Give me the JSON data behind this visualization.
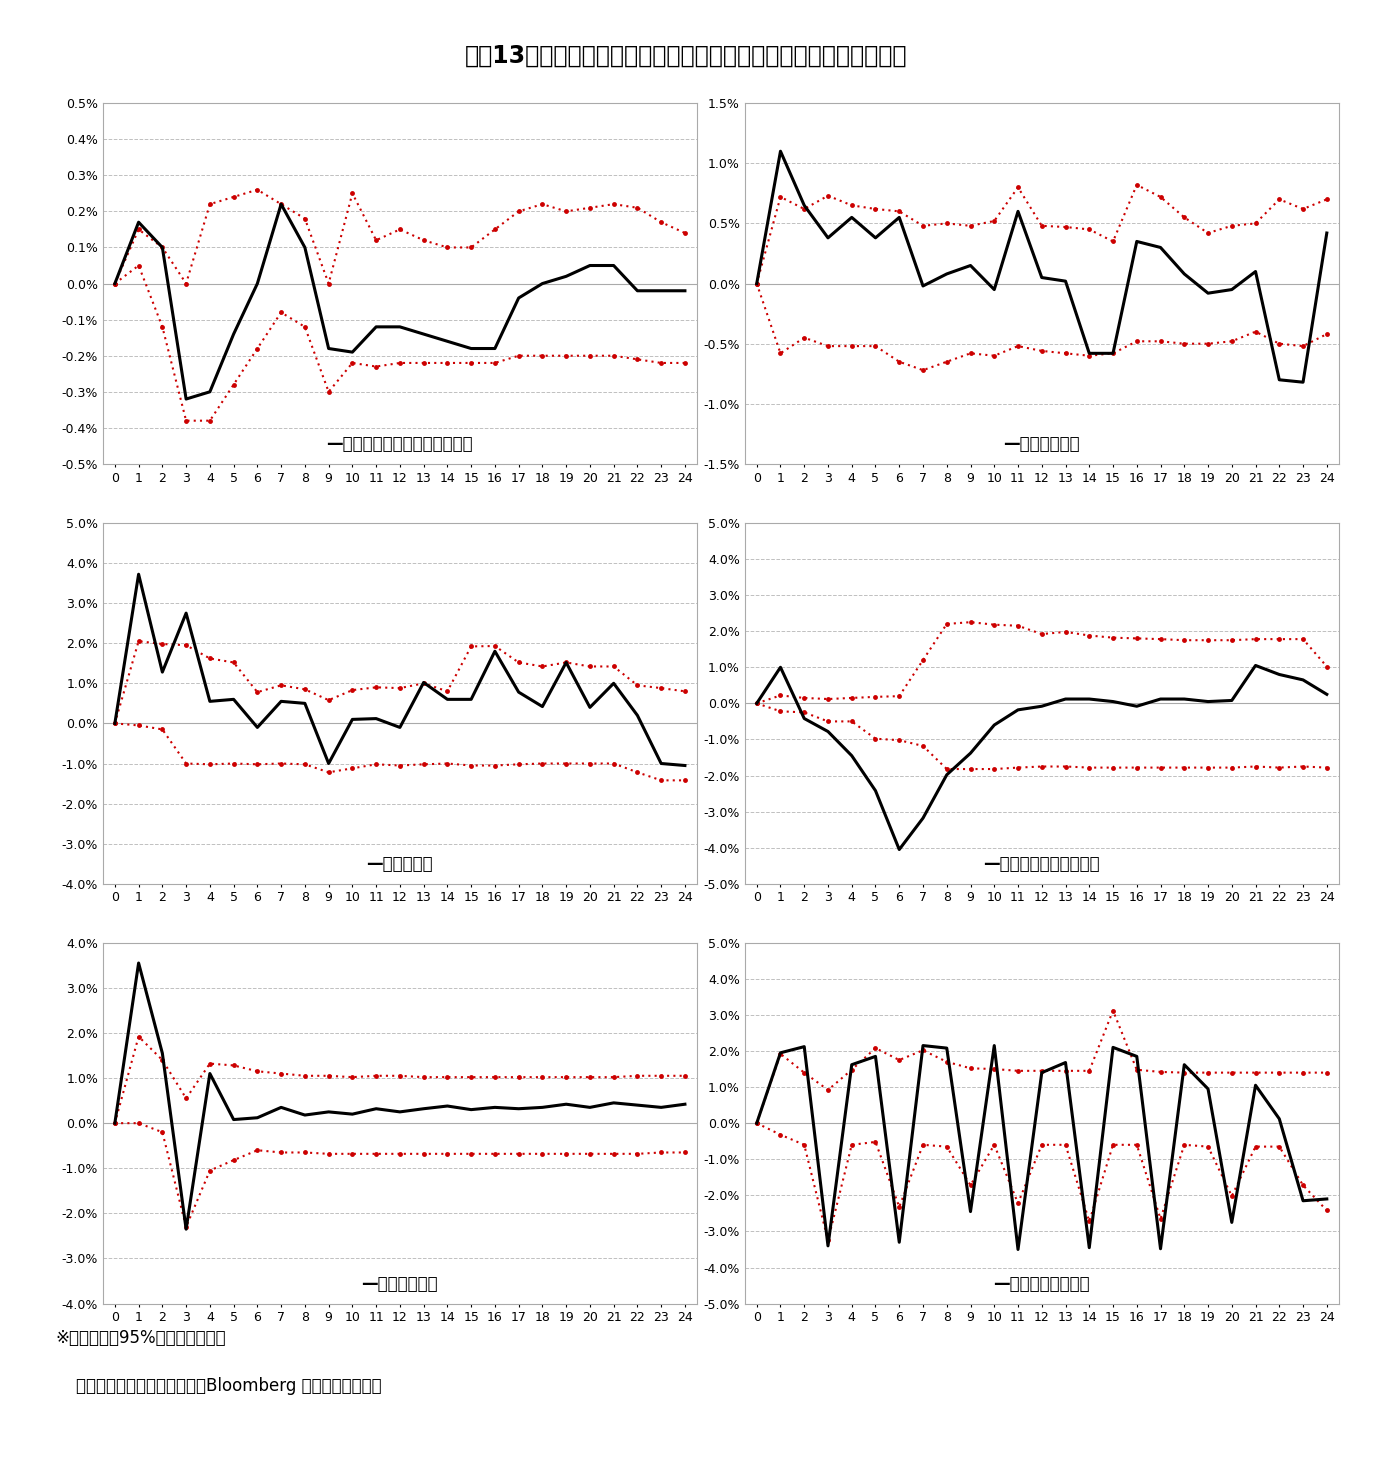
{
  "title": "図表13：米ドル／円にショックを与えたときのインパルス応答関数",
  "footnote1": "※赤い点線は95%信頼区間を示す",
  "footnote2": "（資料：財務省、日本銀行、Bloomberg データから作成）",
  "x": [
    0,
    1,
    2,
    3,
    4,
    5,
    6,
    7,
    8,
    9,
    10,
    11,
    12,
    13,
    14,
    15,
    16,
    17,
    18,
    19,
    20,
    21,
    22,
    23,
    24
  ],
  "panel1_label": "現預金残高（外貨預金除く）",
  "panel1_center": [
    0.0,
    0.17,
    0.1,
    -0.32,
    -0.3,
    -0.14,
    0.0,
    0.22,
    0.1,
    -0.18,
    -0.19,
    -0.12,
    -0.12,
    -0.14,
    -0.16,
    -0.18,
    -0.18,
    -0.04,
    0.0,
    0.02,
    0.05,
    0.05,
    -0.02,
    -0.02,
    -0.02
  ],
  "panel1_upper": [
    0.0,
    0.15,
    0.1,
    0.0,
    0.22,
    0.24,
    0.26,
    0.22,
    0.18,
    0.0,
    0.25,
    0.12,
    0.15,
    0.12,
    0.1,
    0.1,
    0.15,
    0.2,
    0.22,
    0.2,
    0.21,
    0.22,
    0.21,
    0.17,
    0.14
  ],
  "panel1_lower": [
    0.0,
    0.05,
    -0.12,
    -0.38,
    -0.38,
    -0.28,
    -0.18,
    -0.08,
    -0.12,
    -0.3,
    -0.22,
    -0.23,
    -0.22,
    -0.22,
    -0.22,
    -0.22,
    -0.22,
    -0.2,
    -0.2,
    -0.2,
    -0.2,
    -0.2,
    -0.21,
    -0.22,
    -0.22
  ],
  "panel1_ylim": [
    -0.5,
    0.5
  ],
  "panel1_yticks": [
    -0.5,
    -0.4,
    -0.3,
    -0.2,
    -0.1,
    0.0,
    0.1,
    0.2,
    0.3,
    0.4,
    0.5
  ],
  "panel2_label": "債務証券残高",
  "panel2_center": [
    0.0,
    1.1,
    0.65,
    0.38,
    0.55,
    0.38,
    0.55,
    -0.02,
    0.08,
    0.15,
    -0.05,
    0.6,
    0.05,
    0.02,
    -0.58,
    -0.58,
    0.35,
    0.3,
    0.08,
    -0.08,
    -0.05,
    0.1,
    -0.8,
    -0.82,
    0.42
  ],
  "panel2_upper": [
    0.0,
    0.72,
    0.62,
    0.73,
    0.65,
    0.62,
    0.6,
    0.48,
    0.5,
    0.48,
    0.52,
    0.8,
    0.48,
    0.47,
    0.45,
    0.35,
    0.82,
    0.72,
    0.55,
    0.42,
    0.48,
    0.5,
    0.7,
    0.62,
    0.7
  ],
  "panel2_lower": [
    0.0,
    -0.58,
    -0.45,
    -0.52,
    -0.52,
    -0.52,
    -0.65,
    -0.72,
    -0.65,
    -0.58,
    -0.6,
    -0.52,
    -0.56,
    -0.58,
    -0.6,
    -0.58,
    -0.48,
    -0.48,
    -0.5,
    -0.5,
    -0.48,
    -0.4,
    -0.5,
    -0.52,
    -0.42
  ],
  "panel2_ylim": [
    -1.5,
    1.5
  ],
  "panel2_yticks": [
    -1.5,
    -1.0,
    -0.5,
    0.0,
    0.5,
    1.0,
    1.5
  ],
  "panel3_label": "株式等残高",
  "panel3_center": [
    0.0,
    3.72,
    1.28,
    2.75,
    0.55,
    0.6,
    -0.1,
    0.55,
    0.5,
    -1.0,
    0.1,
    0.12,
    -0.1,
    1.02,
    0.6,
    0.6,
    1.8,
    0.78,
    0.42,
    1.52,
    0.4,
    1.0,
    0.2,
    -1.0,
    -1.05
  ],
  "panel3_upper": [
    0.0,
    2.05,
    1.98,
    1.95,
    1.62,
    1.52,
    0.78,
    0.95,
    0.85,
    0.58,
    0.83,
    0.9,
    0.88,
    1.0,
    0.8,
    1.92,
    1.93,
    1.52,
    1.42,
    1.52,
    1.42,
    1.42,
    0.95,
    0.88,
    0.8
  ],
  "panel3_lower": [
    0.0,
    -0.05,
    -0.15,
    -1.0,
    -1.02,
    -1.0,
    -1.02,
    -1.0,
    -1.02,
    -1.22,
    -1.12,
    -1.02,
    -1.05,
    -1.02,
    -1.0,
    -1.05,
    -1.05,
    -1.02,
    -1.0,
    -1.0,
    -1.0,
    -1.0,
    -1.22,
    -1.42,
    -1.42
  ],
  "panel3_ylim": [
    -4.0,
    5.0
  ],
  "panel3_yticks": [
    -4.0,
    -3.0,
    -2.0,
    -1.0,
    0.0,
    1.0,
    2.0,
    3.0,
    4.0,
    5.0
  ],
  "panel4_label": "投資信託受益証券残高",
  "panel4_center": [
    0.0,
    1.0,
    -0.42,
    -0.78,
    -1.45,
    -2.42,
    -4.05,
    -3.18,
    -1.98,
    -1.38,
    -0.6,
    -0.18,
    -0.08,
    0.12,
    0.12,
    0.05,
    -0.08,
    0.12,
    0.12,
    0.05,
    0.08,
    1.05,
    0.8,
    0.65,
    0.25
  ],
  "panel4_upper": [
    0.0,
    0.22,
    0.15,
    0.12,
    0.15,
    0.18,
    0.2,
    1.2,
    2.2,
    2.25,
    2.18,
    2.15,
    1.92,
    1.98,
    1.88,
    1.82,
    1.8,
    1.78,
    1.75,
    1.75,
    1.75,
    1.78,
    1.78,
    1.78,
    1.02
  ],
  "panel4_lower": [
    0.0,
    -0.22,
    -0.25,
    -0.5,
    -0.5,
    -0.98,
    -1.02,
    -1.18,
    -1.82,
    -1.82,
    -1.82,
    -1.78,
    -1.75,
    -1.75,
    -1.78,
    -1.78,
    -1.78,
    -1.78,
    -1.78,
    -1.78,
    -1.78,
    -1.75,
    -1.78,
    -1.75,
    -1.78
  ],
  "panel4_ylim": [
    -5.0,
    5.0
  ],
  "panel4_yticks": [
    -5.0,
    -4.0,
    -3.0,
    -2.0,
    -1.0,
    0.0,
    1.0,
    2.0,
    3.0,
    4.0,
    5.0
  ],
  "panel5_label": "外貨預金残高",
  "panel5_center": [
    0.0,
    3.55,
    1.55,
    -2.35,
    1.1,
    0.08,
    0.12,
    0.35,
    0.18,
    0.25,
    0.2,
    0.32,
    0.25,
    0.32,
    0.38,
    0.3,
    0.35,
    0.32,
    0.35,
    0.42,
    0.35,
    0.45,
    0.4,
    0.35,
    0.42
  ],
  "panel5_upper": [
    0.0,
    1.92,
    1.4,
    0.55,
    1.32,
    1.28,
    1.15,
    1.1,
    1.05,
    1.05,
    1.02,
    1.05,
    1.05,
    1.02,
    1.02,
    1.02,
    1.02,
    1.02,
    1.02,
    1.02,
    1.02,
    1.02,
    1.05,
    1.05,
    1.05
  ],
  "panel5_lower": [
    0.0,
    0.0,
    -0.2,
    -2.3,
    -1.05,
    -0.82,
    -0.6,
    -0.65,
    -0.65,
    -0.68,
    -0.68,
    -0.68,
    -0.68,
    -0.68,
    -0.68,
    -0.68,
    -0.68,
    -0.68,
    -0.68,
    -0.68,
    -0.68,
    -0.68,
    -0.68,
    -0.65,
    -0.65
  ],
  "panel5_ylim": [
    -4.0,
    4.0
  ],
  "panel5_yticks": [
    -4.0,
    -3.0,
    -2.0,
    -1.0,
    0.0,
    1.0,
    2.0,
    3.0,
    4.0
  ],
  "panel6_label": "対外証券投資残高",
  "panel6_center": [
    0.0,
    1.95,
    2.12,
    -3.4,
    1.62,
    1.85,
    -3.3,
    2.15,
    2.08,
    -2.45,
    2.15,
    -3.5,
    1.4,
    1.68,
    -3.45,
    2.1,
    1.85,
    -3.48,
    1.62,
    0.95,
    -2.75,
    1.05,
    0.12,
    -2.15,
    -2.1
  ],
  "panel6_upper": [
    0.0,
    1.92,
    1.4,
    0.92,
    1.48,
    2.08,
    1.75,
    2.02,
    1.7,
    1.52,
    1.5,
    1.45,
    1.45,
    1.45,
    1.45,
    3.12,
    1.48,
    1.42,
    1.4,
    1.4,
    1.4,
    1.4,
    1.4,
    1.4,
    1.4
  ],
  "panel6_lower": [
    0.0,
    -0.32,
    -0.6,
    -3.25,
    -0.6,
    -0.52,
    -2.32,
    -0.6,
    -0.65,
    -1.72,
    -0.6,
    -2.22,
    -0.6,
    -0.6,
    -2.72,
    -0.6,
    -0.6,
    -2.65,
    -0.6,
    -0.65,
    -2.02,
    -0.65,
    -0.65,
    -1.72,
    -2.42
  ],
  "panel6_ylim": [
    -5.0,
    5.0
  ],
  "panel6_yticks": [
    -5.0,
    -4.0,
    -3.0,
    -2.0,
    -1.0,
    0.0,
    1.0,
    2.0,
    3.0,
    4.0,
    5.0
  ],
  "line_color": "#000000",
  "dot_color": "#cc0000",
  "bg_color": "#ffffff",
  "panel_bg": "#ffffff",
  "grid_color": "#c0c0c0",
  "line_width": 2.2,
  "dot_lw": 1.5,
  "dot_ms": 3.5,
  "title_fontsize": 17,
  "label_fontsize": 12,
  "tick_fontsize": 9,
  "footnote_fontsize": 12
}
